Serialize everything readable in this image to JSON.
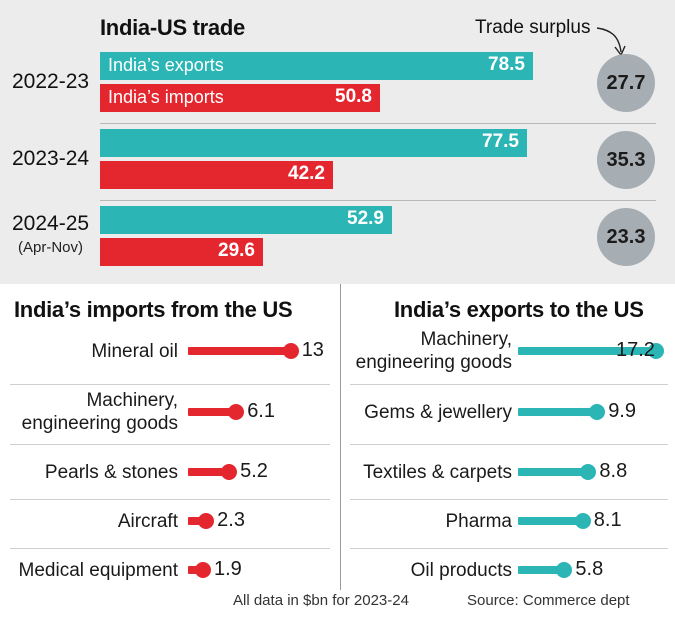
{
  "chart_data": [
    {
      "type": "bar",
      "title": "India-US trade",
      "categories": [
        "2022-23",
        "2023-24",
        "2024-25"
      ],
      "category_sublabels": [
        "",
        "",
        "(Apr-Nov)"
      ],
      "series": [
        {
          "name": "India’s exports",
          "values": [
            78.5,
            77.5,
            52.9
          ],
          "color": "#2bb5b5"
        },
        {
          "name": "India’s imports",
          "values": [
            50.8,
            42.2,
            29.6
          ],
          "color": "#e4262f"
        }
      ],
      "surplus_label": "Trade surplus",
      "surplus": [
        27.7,
        35.3,
        23.3
      ],
      "xlim": [
        0,
        85
      ]
    },
    {
      "type": "bar",
      "title": "India’s imports from the US",
      "categories": [
        "Mineral oil",
        "Machinery, engineering goods",
        "Pearls & stones",
        "Aircraft",
        "Medical equipment"
      ],
      "category_lines": [
        [
          "Mineral oil"
        ],
        [
          "Machinery,",
          "engineering goods"
        ],
        [
          "Pearls & stones"
        ],
        [
          "Aircraft"
        ],
        [
          "Medical equipment"
        ]
      ],
      "values": [
        13,
        6.1,
        5.2,
        2.3,
        1.9
      ],
      "value_labels": [
        "13",
        "6.1",
        "5.2",
        "2.3",
        "1.9"
      ],
      "color": "#e4262f"
    },
    {
      "type": "bar",
      "title": "India’s exports to the US",
      "categories": [
        "Machinery, engineering goods",
        "Gems & jewellery",
        "Textiles & carpets",
        "Pharma",
        "Oil products"
      ],
      "category_lines": [
        [
          "Machinery,",
          "engineering goods"
        ],
        [
          "Gems & jewellery"
        ],
        [
          "Textiles & carpets"
        ],
        [
          "Pharma"
        ],
        [
          "Oil products"
        ]
      ],
      "values": [
        17.2,
        9.9,
        8.8,
        8.1,
        5.8
      ],
      "value_labels": [
        "17.2",
        "9.9",
        "8.8",
        "8.1",
        "5.8"
      ],
      "color": "#2bb5b5"
    }
  ],
  "footer": {
    "note": "All data in $bn for 2023-24",
    "source": "Source: Commerce dept"
  }
}
